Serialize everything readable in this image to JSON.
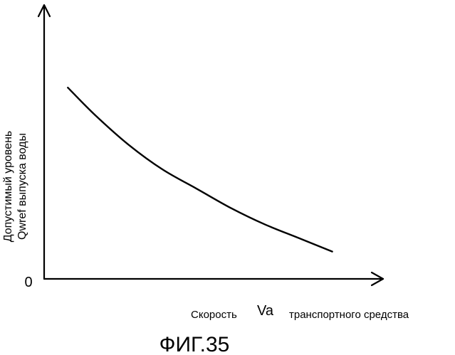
{
  "chart_data": {
    "type": "line",
    "title": "",
    "ylabel_lines": [
      "Допустимый уровень",
      "Qwref выпуска воды"
    ],
    "xlabel": {
      "prefix": "Скорость",
      "symbol": "Va",
      "suffix": "транспортного средства"
    },
    "origin_label": "0",
    "caption": "ФИГ.35",
    "xlim": [
      0,
      1
    ],
    "ylim": [
      0,
      1
    ],
    "grid": false,
    "legend": "none",
    "x_ticks_labeled": false,
    "y_ticks_labeled": false,
    "series": [
      {
        "x": [
          0.07,
          0.15,
          0.25,
          0.35,
          0.45,
          0.55,
          0.65,
          0.75,
          0.85
        ],
        "values": [
          0.7,
          0.6,
          0.49,
          0.4,
          0.33,
          0.26,
          0.2,
          0.15,
          0.1
        ]
      }
    ]
  }
}
